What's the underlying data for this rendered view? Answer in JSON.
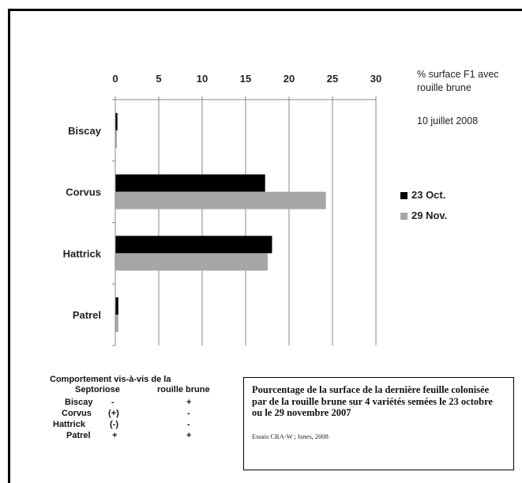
{
  "chart_data": {
    "type": "bar",
    "orientation": "horizontal",
    "categories": [
      "Biscay",
      "Corvus",
      "Hattrick",
      "Patrel"
    ],
    "series": [
      {
        "name": "23 Oct.",
        "color": "#000000",
        "values": [
          0.2,
          17.2,
          18,
          0.3
        ]
      },
      {
        "name": "29 Nov.",
        "color": "#a6a6a6",
        "values": [
          0.1,
          24.2,
          17.5,
          0.3
        ]
      }
    ],
    "xlim": [
      0,
      30
    ],
    "x_ticks": [
      "0",
      "5",
      "10",
      "15",
      "20",
      "25",
      "30"
    ],
    "x_axis_position": "top",
    "gridlines": "vertical",
    "legend_position": "right"
  },
  "annotations": {
    "unit_line1": "% surface  F1 avec",
    "unit_line2": "rouille brune",
    "date": "10 juillet 2008"
  },
  "behaviour_table": {
    "header_line1": "Comportement vis-à-vis de la",
    "col1": "Septoriose",
    "col2": "rouille brune",
    "rows": [
      {
        "variety": "Biscay",
        "septoriose": "-",
        "rouille": "+"
      },
      {
        "variety": "Corvus",
        "septoriose": "(+)",
        "rouille": "-"
      },
      {
        "variety": "Hattrick",
        "septoriose": "(-)",
        "rouille": "-"
      },
      {
        "variety": "Patrel",
        "septoriose": "+",
        "rouille": "+"
      }
    ]
  },
  "caption": {
    "title": "Pourcentage de la surface de la dernière feuille colonisée par de la rouille brune sur 4 variétés semées le 23 octobre ou le 29 novembre 2007",
    "source": "Essais CRA-W ; Isnes, 2008"
  }
}
